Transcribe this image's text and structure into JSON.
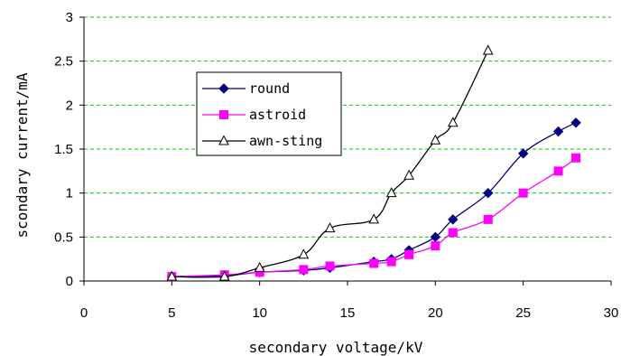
{
  "chart_data": {
    "type": "line",
    "title": "",
    "xlabel": "secondary voltage/kV",
    "ylabel": "scondary current/mA",
    "xlim": [
      0,
      30
    ],
    "ylim": [
      0,
      3
    ],
    "xticks": [
      "0",
      "5",
      "10",
      "15",
      "20",
      "25",
      "30"
    ],
    "yticks": [
      "0",
      "0.5",
      "1",
      "1.5",
      "2",
      "2.5",
      "3"
    ],
    "grid": "horizontal dashed green",
    "legend_position": "upper-left inside plot",
    "series": [
      {
        "name": "round",
        "color": "#000080",
        "marker": "diamond",
        "x": [
          5,
          8,
          10,
          12.5,
          14,
          16.5,
          17.5,
          18.5,
          20,
          21,
          23,
          25,
          27,
          28
        ],
        "y": [
          0.05,
          0.06,
          0.1,
          0.12,
          0.15,
          0.22,
          0.25,
          0.35,
          0.5,
          0.7,
          1.0,
          1.45,
          1.7,
          1.8
        ]
      },
      {
        "name": "astroid",
        "color": "#ff00ff",
        "marker": "square",
        "x": [
          5,
          8,
          10,
          12.5,
          14,
          16.5,
          17.5,
          18.5,
          20,
          21,
          23,
          25,
          27,
          28
        ],
        "y": [
          0.05,
          0.07,
          0.1,
          0.13,
          0.17,
          0.2,
          0.22,
          0.3,
          0.4,
          0.55,
          0.7,
          1.0,
          1.25,
          1.4
        ]
      },
      {
        "name": "awn-sting",
        "color": "#000000",
        "marker": "triangle-open",
        "x": [
          5,
          8,
          10,
          12.5,
          14,
          16.5,
          17.5,
          18.5,
          20,
          21,
          23
        ],
        "y": [
          0.05,
          0.05,
          0.15,
          0.3,
          0.6,
          0.7,
          1.0,
          1.2,
          1.6,
          1.8,
          2.62
        ]
      }
    ]
  }
}
